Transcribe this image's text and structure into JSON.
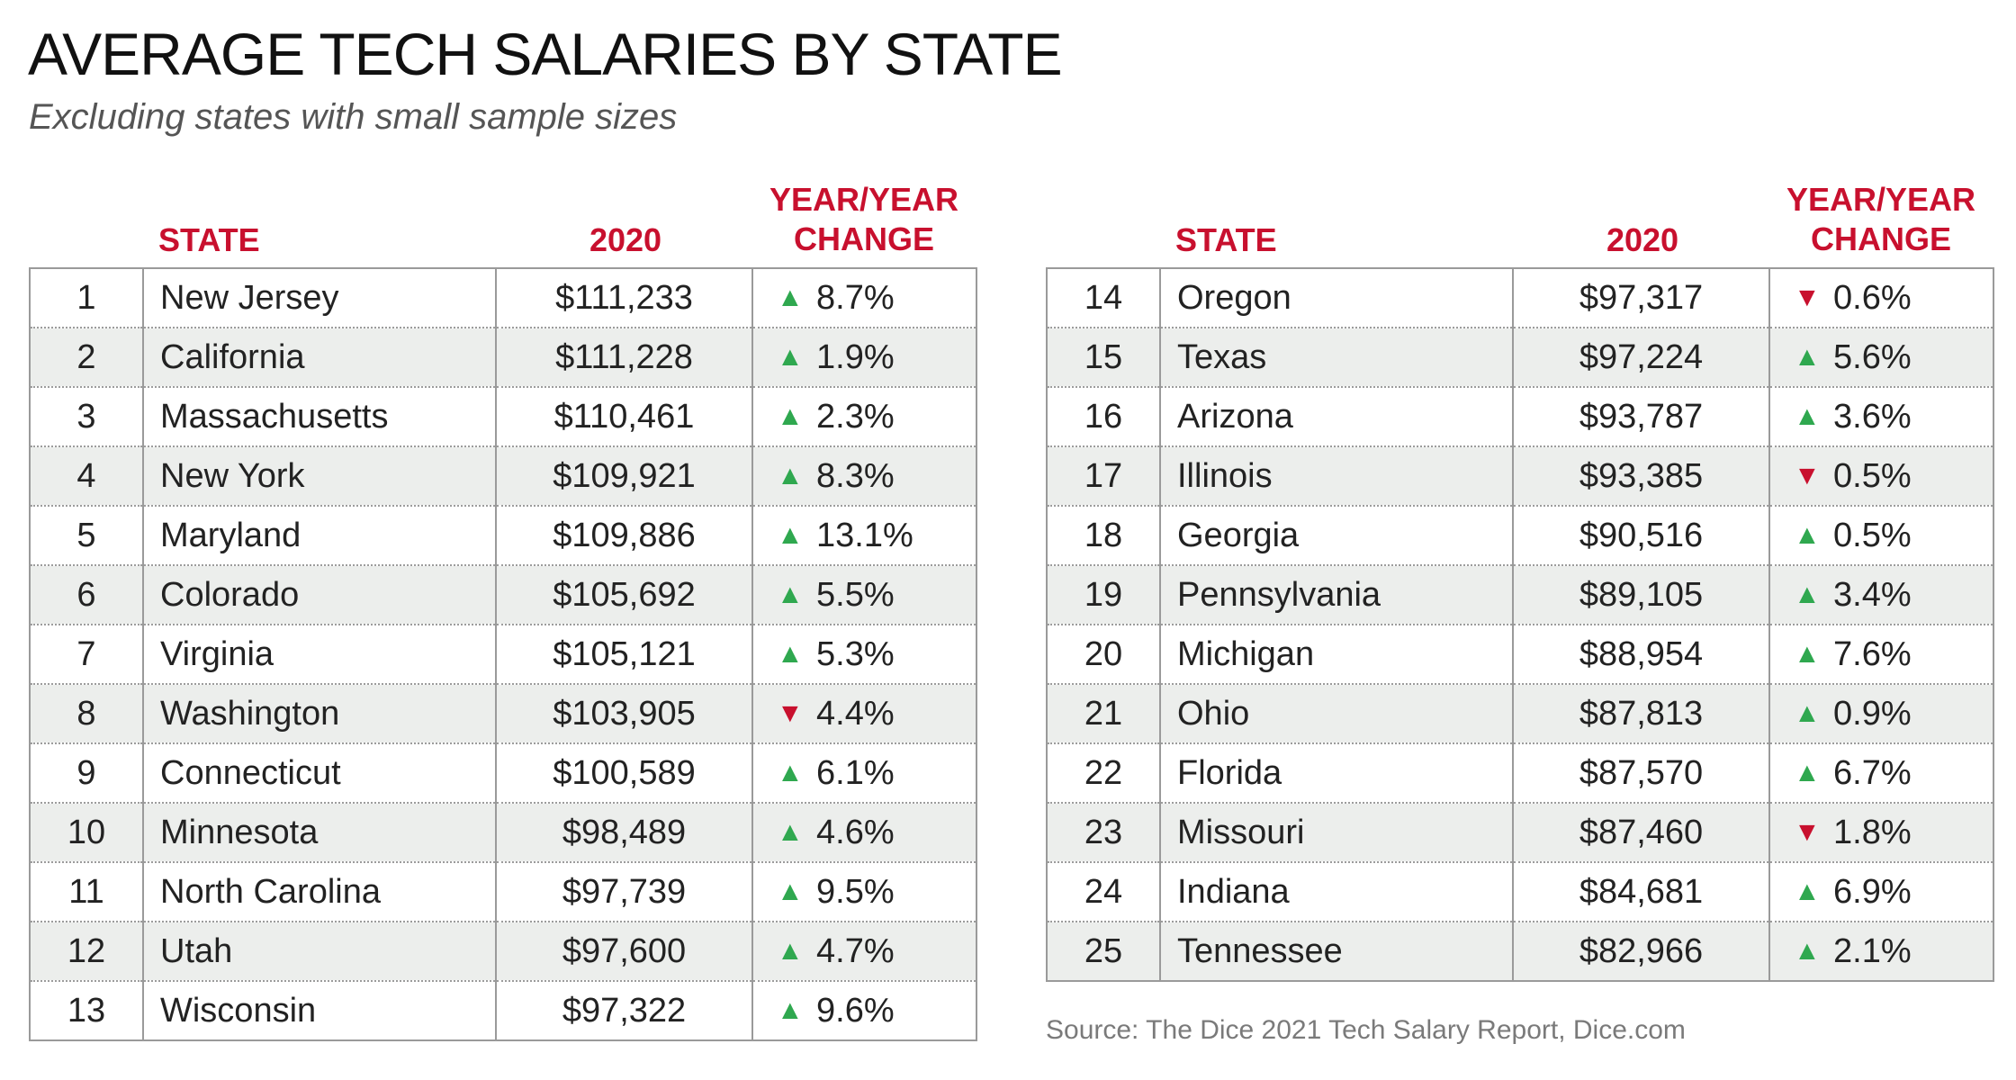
{
  "title": "AVERAGE TECH SALARIES BY STATE",
  "subtitle": "Excluding states with small sample sizes",
  "headers": {
    "state": "STATE",
    "year": "2020",
    "change_line1": "YEAR/YEAR",
    "change_line2": "CHANGE"
  },
  "colors": {
    "accent": "#c8102e",
    "up": "#2fa84f",
    "down": "#c8102e"
  },
  "icons": {
    "up": "up-triangle-icon",
    "down": "down-triangle-icon"
  },
  "rows": [
    {
      "rank": "1",
      "state": "New Jersey",
      "salary": "$111,233",
      "dir": "up",
      "change": "8.7%"
    },
    {
      "rank": "2",
      "state": "California",
      "salary": "$111,228",
      "dir": "up",
      "change": "1.9%"
    },
    {
      "rank": "3",
      "state": "Massachusetts",
      "salary": "$110,461",
      "dir": "up",
      "change": "2.3%"
    },
    {
      "rank": "4",
      "state": "New York",
      "salary": "$109,921",
      "dir": "up",
      "change": "8.3%"
    },
    {
      "rank": "5",
      "state": "Maryland",
      "salary": "$109,886",
      "dir": "up",
      "change": "13.1%"
    },
    {
      "rank": "6",
      "state": "Colorado",
      "salary": "$105,692",
      "dir": "up",
      "change": "5.5%"
    },
    {
      "rank": "7",
      "state": "Virginia",
      "salary": "$105,121",
      "dir": "up",
      "change": "5.3%"
    },
    {
      "rank": "8",
      "state": "Washington",
      "salary": "$103,905",
      "dir": "down",
      "change": "4.4%"
    },
    {
      "rank": "9",
      "state": "Connecticut",
      "salary": "$100,589",
      "dir": "up",
      "change": "6.1%"
    },
    {
      "rank": "10",
      "state": "Minnesota",
      "salary": "$98,489",
      "dir": "up",
      "change": "4.6%"
    },
    {
      "rank": "11",
      "state": "North Carolina",
      "salary": "$97,739",
      "dir": "up",
      "change": "9.5%"
    },
    {
      "rank": "12",
      "state": "Utah",
      "salary": "$97,600",
      "dir": "up",
      "change": "4.7%"
    },
    {
      "rank": "13",
      "state": "Wisconsin",
      "salary": "$97,322",
      "dir": "up",
      "change": "9.6%"
    },
    {
      "rank": "14",
      "state": "Oregon",
      "salary": "$97,317",
      "dir": "down",
      "change": "0.6%"
    },
    {
      "rank": "15",
      "state": "Texas",
      "salary": "$97,224",
      "dir": "up",
      "change": "5.6%"
    },
    {
      "rank": "16",
      "state": "Arizona",
      "salary": "$93,787",
      "dir": "up",
      "change": "3.6%"
    },
    {
      "rank": "17",
      "state": "Illinois",
      "salary": "$93,385",
      "dir": "down",
      "change": "0.5%"
    },
    {
      "rank": "18",
      "state": "Georgia",
      "salary": "$90,516",
      "dir": "up",
      "change": "0.5%"
    },
    {
      "rank": "19",
      "state": "Pennsylvania",
      "salary": "$89,105",
      "dir": "up",
      "change": "3.4%"
    },
    {
      "rank": "20",
      "state": "Michigan",
      "salary": "$88,954",
      "dir": "up",
      "change": "7.6%"
    },
    {
      "rank": "21",
      "state": "Ohio",
      "salary": "$87,813",
      "dir": "up",
      "change": "0.9%"
    },
    {
      "rank": "22",
      "state": "Florida",
      "salary": "$87,570",
      "dir": "up",
      "change": "6.7%"
    },
    {
      "rank": "23",
      "state": "Missouri",
      "salary": "$87,460",
      "dir": "down",
      "change": "1.8%"
    },
    {
      "rank": "24",
      "state": "Indiana",
      "salary": "$84,681",
      "dir": "up",
      "change": "6.9%"
    },
    {
      "rank": "25",
      "state": "Tennessee",
      "salary": "$82,966",
      "dir": "up",
      "change": "2.1%"
    }
  ],
  "source": "Source: The Dice 2021 Tech Salary Report, Dice.com"
}
